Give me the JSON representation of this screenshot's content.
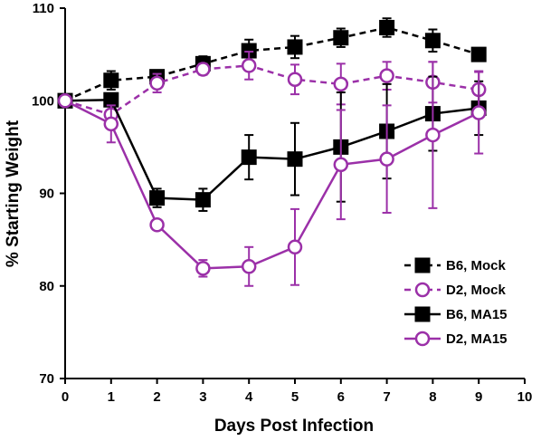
{
  "chart_data": {
    "type": "line",
    "xlabel": "Days Post Infection",
    "ylabel": "% Starting Weight",
    "xlim": [
      0,
      10
    ],
    "ylim": [
      70,
      110
    ],
    "xticks": [
      "0",
      "1",
      "2",
      "3",
      "4",
      "5",
      "6",
      "7",
      "8",
      "9",
      "10"
    ],
    "yticks": [
      "70",
      "80",
      "90",
      "100",
      "110"
    ],
    "grid": false,
    "legend_position": "bottom-right",
    "series": [
      {
        "name": "B6, Mock",
        "color": "#000000",
        "line": "dashed",
        "marker": "filled-square",
        "x": [
          0,
          1,
          2,
          3,
          4,
          5,
          6,
          7,
          8,
          9
        ],
        "y": [
          100,
          102.2,
          102.6,
          104,
          105.4,
          105.8,
          106.8,
          107.9,
          106.5,
          105
        ],
        "err": [
          0,
          1,
          0.5,
          0.8,
          1.2,
          1.2,
          1,
          1,
          1.2,
          0.5
        ]
      },
      {
        "name": "D2, Mock",
        "color": "#9b30a8",
        "line": "dashed",
        "marker": "open-circle",
        "x": [
          0,
          1,
          2,
          3,
          4,
          5,
          6,
          7,
          8,
          9
        ],
        "y": [
          100,
          98.5,
          101.9,
          103.4,
          103.8,
          102.3,
          101.8,
          102.7,
          102,
          101.2
        ],
        "err": [
          0,
          1,
          1,
          0.6,
          1.5,
          1.6,
          2.2,
          1.5,
          2.2,
          2
        ]
      },
      {
        "name": "B6, MA15",
        "color": "#000000",
        "line": "solid",
        "marker": "filled-square",
        "x": [
          0,
          1,
          2,
          3,
          4,
          5,
          6,
          7,
          8,
          9
        ],
        "y": [
          100,
          100.1,
          89.5,
          89.3,
          93.9,
          93.7,
          95,
          96.7,
          98.6,
          99.2
        ],
        "err": [
          0,
          0.5,
          1,
          1.2,
          2.4,
          3.9,
          5.9,
          5.1,
          4.0,
          2.9
        ]
      },
      {
        "name": "D2, MA15",
        "color": "#9b30a8",
        "line": "solid",
        "marker": "open-circle",
        "x": [
          0,
          1,
          2,
          3,
          4,
          5,
          6,
          7,
          8,
          9
        ],
        "y": [
          100,
          97.5,
          86.6,
          81.9,
          82.1,
          84.2,
          93.1,
          93.7,
          96.3,
          98.7
        ],
        "err": [
          0,
          2,
          0.5,
          0.9,
          2.1,
          4.1,
          5.9,
          5.8,
          7.9,
          4.4
        ]
      }
    ]
  }
}
